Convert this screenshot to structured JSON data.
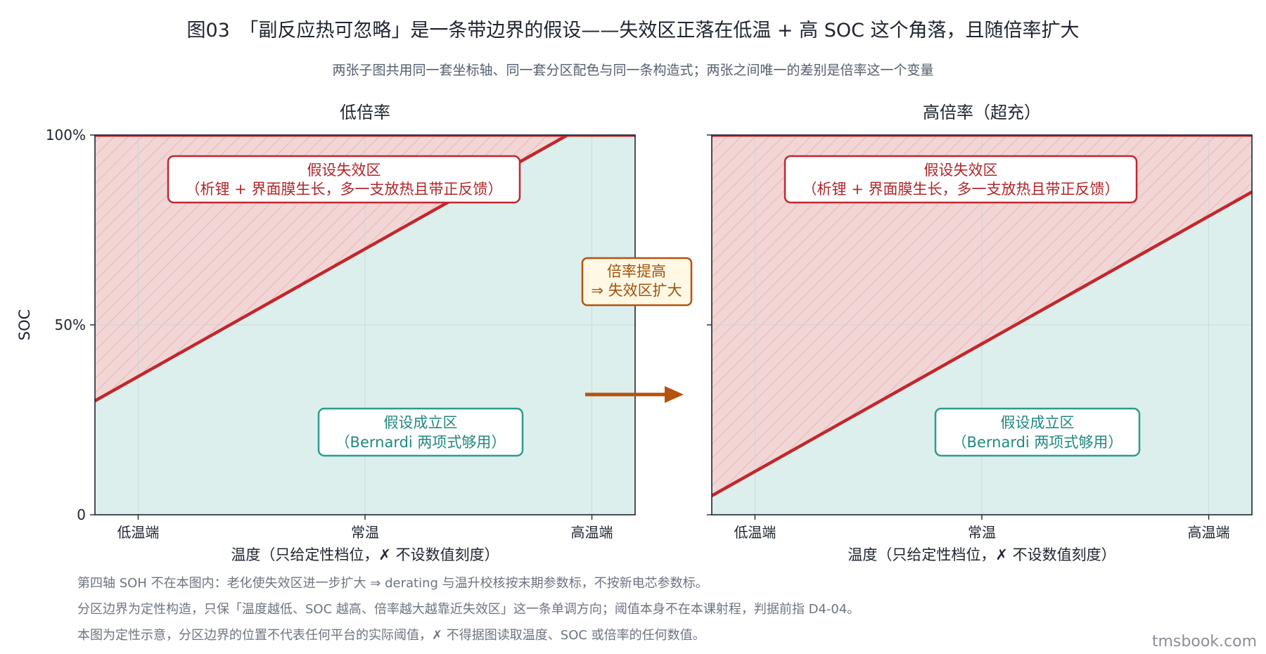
{
  "title": "图03　「副反应热可忽略」是一条带边界的假设——失效区正落在低温 + 高 SOC 这个角落，且随倍率扩大",
  "subtitle": "两张子图共用同一套坐标轴、同一套分区配色与同一条构造式；两张之间唯一的差别是倍率这一个变量",
  "colors": {
    "failure_fill": "#f2d6d6",
    "failure_hatch": "#e2a4a6",
    "valid_fill": "#dcefec",
    "boundary": "#c0282d",
    "arrow": "#b5520f",
    "badge_fill": "#fff8e4",
    "badge_border": "#b5520f",
    "teal_border": "#2a9d8f",
    "red_border": "#c0282d"
  },
  "chart_data": [
    {
      "type": "area",
      "title": "低倍率",
      "xlabel": "温度（只给定性档位，✗ 不设数值刻度）",
      "ylabel": "SOC",
      "x_categories": [
        "低温端",
        "常温",
        "高温端"
      ],
      "y_ticks": [
        "0",
        "50%",
        "100%"
      ],
      "ylim": [
        0,
        100
      ],
      "grid": true,
      "boundary_line": {
        "x": [
          0,
          1
        ],
        "y": [
          30,
          110
        ]
      },
      "regions": [
        {
          "name": "假设失效区",
          "lines": [
            "假设失效区",
            "（析锂 + 界面膜生长，多一支放热且带正反馈）"
          ]
        },
        {
          "name": "假设成立区",
          "lines": [
            "假设成立区",
            "（Bernardi 两项式够用）"
          ]
        }
      ]
    },
    {
      "type": "area",
      "title": "高倍率（超充）",
      "xlabel": "温度（只给定性档位，✗ 不设数值刻度）",
      "ylabel": "",
      "x_categories": [
        "低温端",
        "常温",
        "高温端"
      ],
      "y_ticks": [
        "",
        "",
        ""
      ],
      "ylim": [
        0,
        100
      ],
      "grid": true,
      "boundary_line": {
        "x": [
          0,
          1
        ],
        "y": [
          5,
          85
        ]
      },
      "regions": [
        {
          "name": "假设失效区",
          "lines": [
            "假设失效区",
            "（析锂 + 界面膜生长，多一支放热且带正反馈）"
          ]
        },
        {
          "name": "假设成立区",
          "lines": [
            "假设成立区",
            "（Bernardi 两项式够用）"
          ]
        }
      ]
    }
  ],
  "transition_badge": {
    "lines": [
      "倍率提高",
      "⇒ 失效区扩大"
    ]
  },
  "notes": [
    "第四轴 SOH 不在本图内：老化使失效区进一步扩大 ⇒ derating 与温升校核按末期参数标，不按新电芯参数标。",
    "分区边界为定性构造，只保「温度越低、SOC 越高、倍率越大越靠近失效区」这一条单调方向；阈值本身不在本课射程，判据前指 D4-04。",
    "本图为定性示意，分区边界的位置不代表任何平台的实际阈值，✗ 不得据图读取温度、SOC 或倍率的任何数值。"
  ],
  "watermark": "tmsbook.com"
}
